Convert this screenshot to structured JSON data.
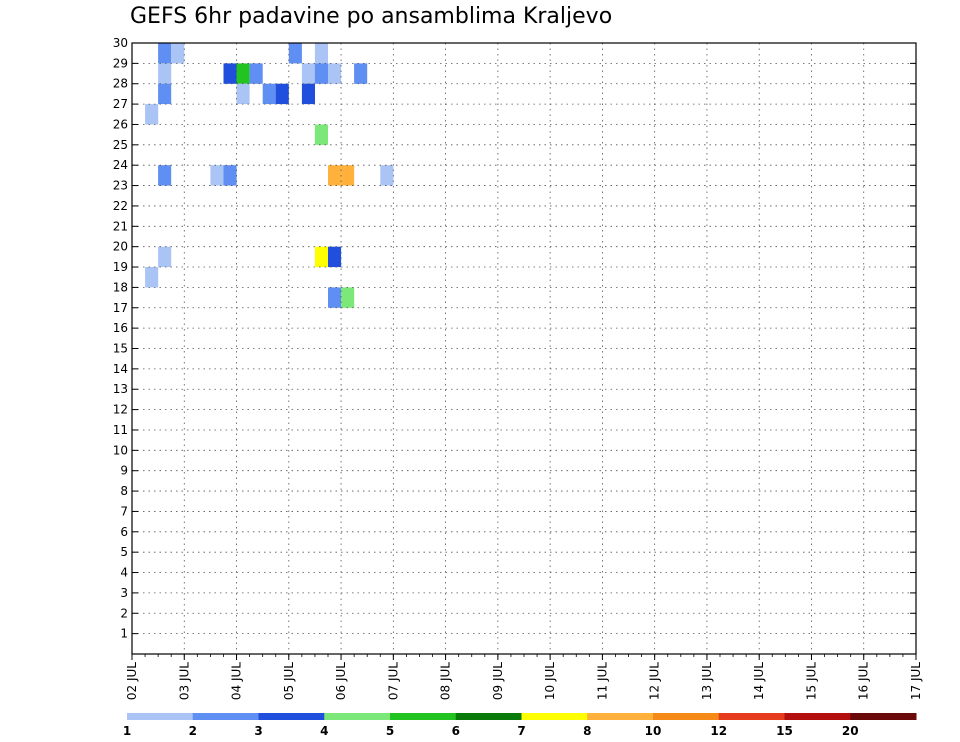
{
  "chart_data": {
    "type": "heatmap",
    "title": "GEFS 6hr padavine po ansamblima Kraljevo",
    "y_ticks": [
      "1",
      "2",
      "3",
      "4",
      "5",
      "6",
      "7",
      "8",
      "9",
      "10",
      "11",
      "12",
      "13",
      "14",
      "15",
      "16",
      "17",
      "18",
      "19",
      "20",
      "21",
      "22",
      "23",
      "24",
      "25",
      "26",
      "27",
      "28",
      "29",
      "30"
    ],
    "x_ticks": [
      "02 JUL",
      "03 JUL",
      "04 JUL",
      "05 JUL",
      "06 JUL",
      "07 JUL",
      "08 JUL",
      "09 JUL",
      "10 JUL",
      "11 JUL",
      "12 JUL",
      "13 JUL",
      "14 JUL",
      "15 JUL",
      "16 JUL",
      "17 JUL"
    ],
    "grid": "dotted",
    "legend": {
      "placement": "bottom",
      "labels": [
        "1",
        "2",
        "3",
        "4",
        "5",
        "6",
        "7",
        "8",
        "10",
        "12",
        "15",
        "20"
      ],
      "colors": [
        "#a9c4f5",
        "#5f8ff2",
        "#1f4fdc",
        "#7de87a",
        "#22c422",
        "#0a7a0a",
        "#ffff00",
        "#ffb13b",
        "#f58a18",
        "#e43c1c",
        "#b40f0f",
        "#6b0a0a"
      ]
    },
    "cells": [
      {
        "step": 3,
        "member": 30,
        "level": 2
      },
      {
        "step": 4,
        "member": 30,
        "level": 1
      },
      {
        "step": 13,
        "member": 30,
        "level": 2
      },
      {
        "step": 15,
        "member": 30,
        "level": 1
      },
      {
        "step": 3,
        "member": 29,
        "level": 1
      },
      {
        "step": 8,
        "member": 29,
        "level": 3
      },
      {
        "step": 9,
        "member": 29,
        "level": 5
      },
      {
        "step": 10,
        "member": 29,
        "level": 2
      },
      {
        "step": 14,
        "member": 29,
        "level": 1
      },
      {
        "step": 15,
        "member": 29,
        "level": 2
      },
      {
        "step": 16,
        "member": 29,
        "level": 1
      },
      {
        "step": 18,
        "member": 29,
        "level": 2
      },
      {
        "step": 3,
        "member": 28,
        "level": 2
      },
      {
        "step": 9,
        "member": 28,
        "level": 1
      },
      {
        "step": 11,
        "member": 28,
        "level": 2
      },
      {
        "step": 12,
        "member": 28,
        "level": 3
      },
      {
        "step": 14,
        "member": 28,
        "level": 3
      },
      {
        "step": 2,
        "member": 27,
        "level": 1
      },
      {
        "step": 15,
        "member": 26,
        "level": 4
      },
      {
        "step": 3,
        "member": 24,
        "level": 2
      },
      {
        "step": 7,
        "member": 24,
        "level": 1
      },
      {
        "step": 8,
        "member": 24,
        "level": 2
      },
      {
        "step": 16,
        "member": 24,
        "level": 8
      },
      {
        "step": 17,
        "member": 24,
        "level": 8
      },
      {
        "step": 20,
        "member": 24,
        "level": 1
      },
      {
        "step": 16,
        "member": 20,
        "level": 3
      },
      {
        "step": 3,
        "member": 20,
        "level": 1
      },
      {
        "step": 2,
        "member": 19,
        "level": 1
      },
      {
        "step": 15,
        "member": 20,
        "level": 7
      },
      {
        "step": 16,
        "member": 18,
        "level": 2
      },
      {
        "step": 17,
        "member": 18,
        "level": 4
      }
    ]
  }
}
